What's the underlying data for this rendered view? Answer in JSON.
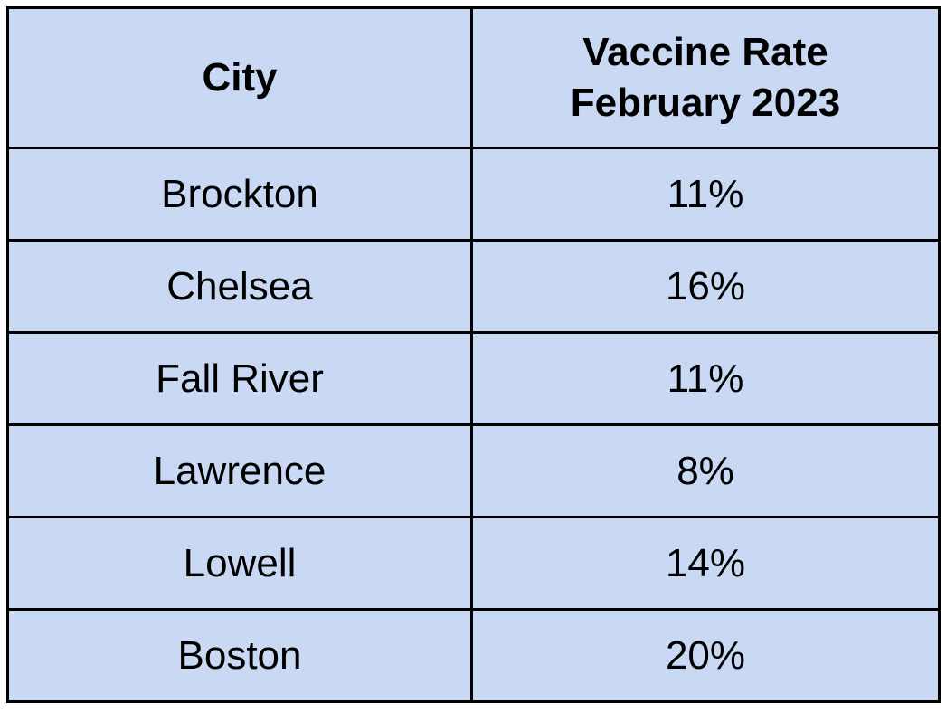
{
  "table": {
    "headers": {
      "city": "City",
      "rate_line1": "Vaccine Rate",
      "rate_line2": "February 2023"
    },
    "rows": [
      {
        "city": "Brockton",
        "rate": "11%"
      },
      {
        "city": "Chelsea",
        "rate": "16%"
      },
      {
        "city": "Fall River",
        "rate": "11%"
      },
      {
        "city": "Lawrence",
        "rate": "8%"
      },
      {
        "city": "Lowell",
        "rate": "14%"
      },
      {
        "city": "Boston",
        "rate": "20%"
      }
    ]
  },
  "colors": {
    "cell_background": "#c9d9f3",
    "border": "#000000",
    "text": "#000000"
  }
}
